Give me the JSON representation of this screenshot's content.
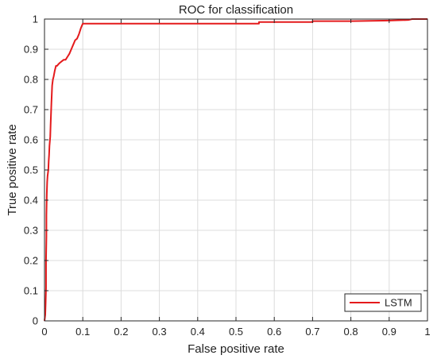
{
  "chart_data": {
    "type": "line",
    "title": "ROC for classification",
    "xlabel": "False positive rate",
    "ylabel": "True positive rate",
    "xlim": [
      0,
      1
    ],
    "ylim": [
      0,
      1
    ],
    "xticks": [
      "0",
      "0.1",
      "0.2",
      "0.3",
      "0.4",
      "0.5",
      "0.6",
      "0.7",
      "0.8",
      "0.9",
      "1"
    ],
    "yticks": [
      "0",
      "0.1",
      "0.2",
      "0.3",
      "0.4",
      "0.5",
      "0.6",
      "0.7",
      "0.8",
      "0.9",
      "1"
    ],
    "grid": true,
    "legend_position": "bottom-right",
    "series": [
      {
        "name": "LSTM",
        "color": "#e41a1c",
        "x": [
          0,
          0.002,
          0.003,
          0.004,
          0.004,
          0.005,
          0.005,
          0.006,
          0.007,
          0.008,
          0.01,
          0.011,
          0.012,
          0.013,
          0.015,
          0.016,
          0.018,
          0.02,
          0.022,
          0.024,
          0.027,
          0.03,
          0.033,
          0.036,
          0.04,
          0.045,
          0.05,
          0.055,
          0.06,
          0.065,
          0.07,
          0.075,
          0.08,
          0.085,
          0.09,
          0.095,
          0.1,
          0.2,
          0.3,
          0.4,
          0.5,
          0.56,
          0.56,
          0.7,
          0.7,
          0.8,
          0.9,
          0.95,
          0.96,
          1.0
        ],
        "y": [
          0,
          0.02,
          0.06,
          0.11,
          0.2,
          0.28,
          0.35,
          0.42,
          0.46,
          0.48,
          0.5,
          0.53,
          0.55,
          0.58,
          0.61,
          0.65,
          0.72,
          0.78,
          0.8,
          0.81,
          0.83,
          0.845,
          0.845,
          0.85,
          0.855,
          0.86,
          0.865,
          0.865,
          0.875,
          0.885,
          0.9,
          0.915,
          0.93,
          0.935,
          0.95,
          0.97,
          0.985,
          0.985,
          0.985,
          0.985,
          0.985,
          0.985,
          0.99,
          0.99,
          0.993,
          0.993,
          0.995,
          0.997,
          1.0,
          1.0
        ]
      }
    ]
  }
}
